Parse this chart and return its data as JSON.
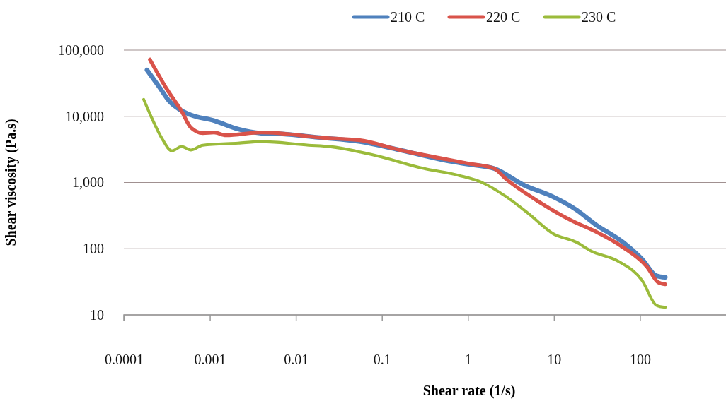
{
  "chart_data": {
    "type": "line",
    "xlabel": "Shear rate (1/s)",
    "ylabel": "Shear viscosity (Pa.s)",
    "log": "xy",
    "grid": "y",
    "legend": "top",
    "marker": "none",
    "line_style": "solid",
    "xlim": [
      0.0001,
      1000
    ],
    "xticks": [
      0.0001,
      0.001,
      0.01,
      0.1,
      1,
      10,
      100
    ],
    "ylim": [
      10,
      100000
    ],
    "yticks": [
      10,
      100,
      {
        "value": 1000,
        "label": "1,000"
      },
      {
        "value": 10000,
        "label": "10,000"
      },
      {
        "value": 100000,
        "label": "100,000"
      }
    ],
    "series": [
      {
        "name": "210 C",
        "color": "#4f81bd",
        "x": [
          0.000186,
          0.000257,
          0.000341,
          0.000453,
          0.000601,
          0.00112,
          0.00213,
          0.00396,
          0.00698,
          0.0179,
          0.0557,
          0.163,
          0.568,
          1,
          2.01,
          4.53,
          9.63,
          18.3,
          29.9,
          63.5,
          106,
          155,
          197
        ],
        "values": [
          50000,
          28000,
          16700,
          12500,
          10500,
          8600,
          6400,
          5560,
          5420,
          4800,
          4140,
          3090,
          2140,
          1890,
          1630,
          906,
          613,
          385,
          236,
          125,
          69,
          39,
          37
        ]
      },
      {
        "name": "220 C",
        "color": "#d9534a",
        "x": [
          0.000201,
          0.000322,
          0.00047,
          0.000601,
          0.000828,
          0.00112,
          0.00154,
          0.00396,
          0.023,
          0.0557,
          0.163,
          0.568,
          1,
          2.01,
          2.77,
          6.61,
          16,
          29.9,
          63.5,
          121,
          163,
          197
        ],
        "values": [
          72000,
          24800,
          11900,
          6760,
          5560,
          5690,
          5160,
          5690,
          4680,
          4350,
          3090,
          2240,
          1940,
          1630,
          1130,
          516,
          266,
          184,
          105,
          53,
          31,
          29
        ]
      },
      {
        "name": "230 C",
        "color": "#9bbb3b",
        "x": [
          0.00017,
          0.000205,
          0.000282,
          0.000361,
          0.00047,
          0.000601,
          0.000828,
          0.00213,
          0.00396,
          0.0141,
          0.0247,
          0.0859,
          0.305,
          0.782,
          1.46,
          2.77,
          5.16,
          9.63,
          18.3,
          26.7,
          56.8,
          106,
          155,
          197
        ],
        "values": [
          18000,
          10300,
          4460,
          3010,
          3490,
          3090,
          3660,
          3940,
          4140,
          3660,
          3490,
          2540,
          1630,
          1280,
          1000,
          613,
          332,
          171,
          125,
          93,
          64,
          33,
          14,
          13
        ]
      }
    ]
  }
}
